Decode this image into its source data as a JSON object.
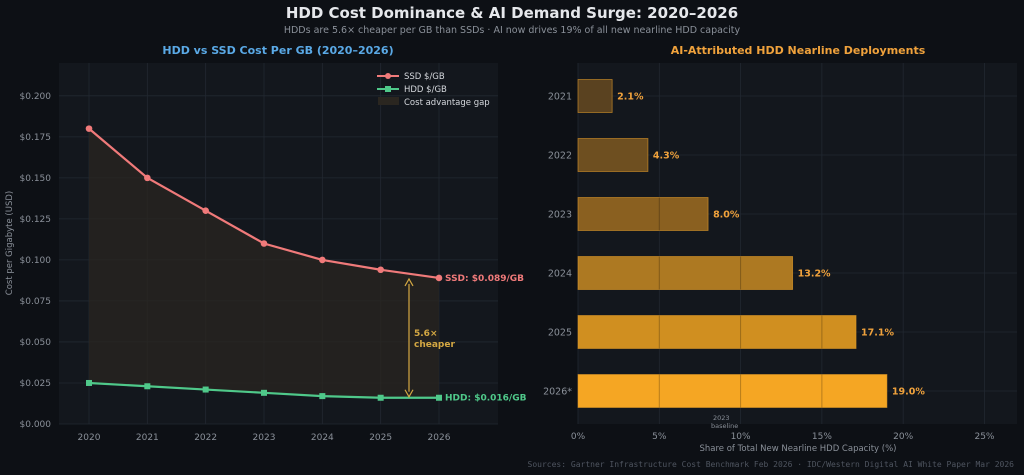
{
  "header": {
    "title": "HDD Cost Dominance & AI Demand Surge: 2020–2026",
    "subtitle": "HDDs are 5.6× cheaper per GB than SSDs · AI now drives 19% of all new nearline HDD capacity"
  },
  "footer": "Sources: Gartner Infrastructure Cost Benchmark Feb 2026 · IDC/Western Digital AI White Paper Mar 2026",
  "chart_data": [
    {
      "type": "line",
      "title": "HDD vs SSD Cost Per GB (2020–2026)",
      "xlabel": "",
      "ylabel": "Cost per Gigabyte (USD)",
      "x": [
        "2020",
        "2021",
        "2022",
        "2023",
        "2024",
        "2025",
        "2026"
      ],
      "ylim": [
        0,
        0.22
      ],
      "yticks": [
        "$0.000",
        "$0.025",
        "$0.050",
        "$0.075",
        "$0.100",
        "$0.125",
        "$0.150",
        "$0.175",
        "$0.200"
      ],
      "ytick_values": [
        0,
        0.025,
        0.05,
        0.075,
        0.1,
        0.125,
        0.15,
        0.175,
        0.2
      ],
      "series": [
        {
          "name": "SSD $/GB",
          "color": "#f07a7a",
          "values": [
            0.18,
            0.15,
            0.13,
            0.11,
            0.1,
            0.094,
            0.089
          ]
        },
        {
          "name": "HDD $/GB",
          "color": "#4fc98a",
          "values": [
            0.025,
            0.023,
            0.021,
            0.019,
            0.017,
            0.016,
            0.016
          ]
        }
      ],
      "legend": [
        "SSD $/GB",
        "HDD $/GB",
        "Cost advantage gap"
      ],
      "legend_position": "top-right",
      "end_labels": {
        "ssd": "SSD: $0.089/GB",
        "hdd": "HDD: $0.016/GB"
      },
      "annotation": {
        "line1": "5.6×",
        "line2": "cheaper",
        "color": "#d4a843"
      },
      "grid": true
    },
    {
      "type": "bar",
      "orientation": "horizontal",
      "title": "AI-Attributed HDD Nearline Deployments",
      "xlabel": "Share of Total New Nearline HDD Capacity (%)",
      "ylabel": "",
      "categories": [
        "2021",
        "2022",
        "2023",
        "2024",
        "2025",
        "2026*"
      ],
      "values": [
        2.1,
        4.3,
        8.0,
        13.2,
        17.1,
        19.0
      ],
      "value_labels": [
        "2.1%",
        "4.3%",
        "8.0%",
        "13.2%",
        "17.1%",
        "19.0%"
      ],
      "xlim": [
        0,
        27
      ],
      "xticks": [
        "0%",
        "5%",
        "10%",
        "15%",
        "20%",
        "25%"
      ],
      "xtick_values": [
        0,
        5,
        10,
        15,
        20,
        25
      ],
      "baseline_note": {
        "line1": "2023",
        "line2": "baseline"
      },
      "bar_colors": [
        "#5a4220",
        "#6e4f20",
        "#8a6020",
        "#ad7922",
        "#d08f20",
        "#f5a623"
      ],
      "grid": true
    }
  ]
}
